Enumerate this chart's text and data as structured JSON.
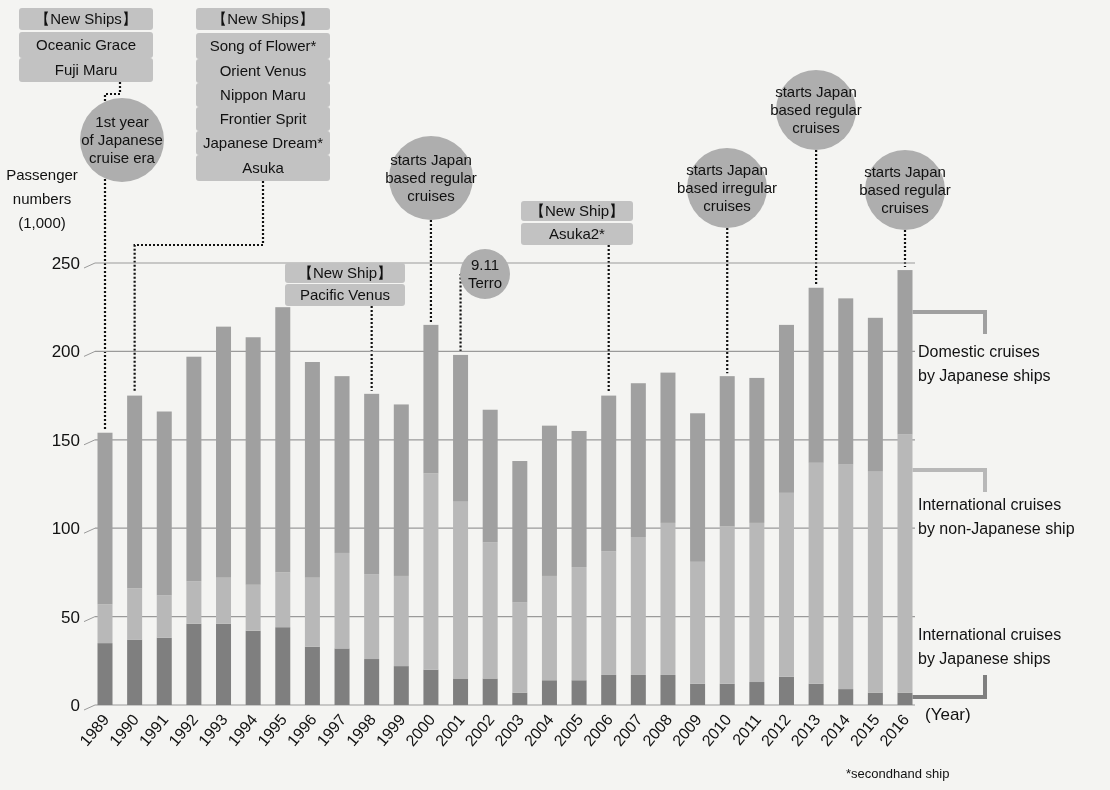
{
  "chart_data": {
    "type": "bar",
    "stacked": true,
    "ylabel": "Passenger numbers (1,000)",
    "xlabel": "(Year)",
    "categories": [
      "1989",
      "1990",
      "1991",
      "1992",
      "1993",
      "1994",
      "1995",
      "1996",
      "1997",
      "1998",
      "1999",
      "2000",
      "2001",
      "2002",
      "2003",
      "2004",
      "2005",
      "2006",
      "2007",
      "2008",
      "2009",
      "2010",
      "2011",
      "2012",
      "2013",
      "2014",
      "2015",
      "2016"
    ],
    "series": [
      {
        "name": "International cruises by Japanese ships",
        "color": "#7f7f7f",
        "values": [
          35,
          37,
          38,
          46,
          46,
          42,
          44,
          33,
          32,
          26,
          22,
          20,
          15,
          15,
          7,
          14,
          14,
          17,
          17,
          17,
          12,
          12,
          13,
          16,
          12,
          9,
          7,
          7
        ]
      },
      {
        "name": "International cruises by non-Japanese ship",
        "color": "#b8b8b8",
        "values": [
          22,
          29,
          24,
          24,
          26,
          26,
          31,
          39,
          54,
          48,
          51,
          111,
          100,
          77,
          51,
          59,
          64,
          70,
          78,
          86,
          69,
          89,
          90,
          104,
          125,
          127,
          125,
          146
        ]
      },
      {
        "name": "Domestic cruises by Japanese ships",
        "color": "#a0a0a0",
        "values": [
          97,
          109,
          104,
          127,
          142,
          140,
          150,
          122,
          100,
          102,
          97,
          84,
          83,
          75,
          80,
          85,
          77,
          88,
          87,
          85,
          84,
          85,
          82,
          95,
          99,
          94,
          87,
          93
        ]
      }
    ],
    "ylim": [
      0,
      250
    ],
    "yticks": [
      0,
      50,
      100,
      150,
      200,
      250
    ],
    "grid": "y",
    "legend": "right",
    "annotations": [
      "【New Ships】",
      "Oceanic Grace",
      {
        "text": "Fuji Maru",
        "x": "1989",
        "y": 154
      },
      "1st year of Japanese cruise era",
      "【New Ships】",
      "Song of Flower*",
      "Orient Venus",
      "Nippon Maru",
      "Frontier Sprit",
      "Japanese Dream*",
      {
        "text": "Asuka",
        "x": "1990",
        "y": 175
      },
      "【New Ship】",
      {
        "text": "Pacific Venus",
        "x": "1998",
        "y": 176
      },
      {
        "text": "starts Japan based regular cruises",
        "x": "2000",
        "y": 215
      },
      {
        "text": "9.11 Terro",
        "x": "2001",
        "y": 198
      },
      "【New Ship】",
      {
        "text": "Asuka2*",
        "x": "2006",
        "y": 175
      },
      {
        "text": "starts Japan based irregular cruises",
        "x": "2010",
        "y": 186
      },
      {
        "text": "starts Japan based regular cruises",
        "x": "2013",
        "y": 236
      },
      {
        "text": "starts Japan based regular cruises",
        "x": "2016",
        "y": 246
      },
      "*secondhand ship"
    ]
  }
}
